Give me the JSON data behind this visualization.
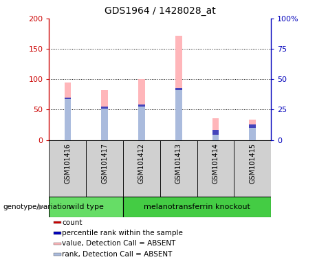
{
  "title": "GDS1964 / 1428028_at",
  "samples": [
    "GSM101416",
    "GSM101417",
    "GSM101412",
    "GSM101413",
    "GSM101414",
    "GSM101415"
  ],
  "pink_bar_heights": [
    95,
    82,
    100,
    172,
    36,
    33
  ],
  "periwinkle_bar_heights": [
    70,
    55,
    58,
    85,
    17,
    25
  ],
  "blue_segment_at_top": [
    3,
    3,
    3,
    3,
    8,
    5
  ],
  "ylim_left": [
    0,
    200
  ],
  "ylim_right": [
    0,
    100
  ],
  "left_ticks": [
    0,
    50,
    100,
    150,
    200
  ],
  "right_ticks": [
    0,
    25,
    50,
    75,
    100
  ],
  "left_tick_labels": [
    "0",
    "50",
    "100",
    "150",
    "200"
  ],
  "right_tick_labels": [
    "0",
    "25",
    "50",
    "75",
    "100%"
  ],
  "groups": [
    {
      "label": "wild type",
      "indices": [
        0,
        1
      ],
      "color": "#66DD66"
    },
    {
      "label": "melanotransferrin knockout",
      "indices": [
        2,
        3,
        4,
        5
      ],
      "color": "#44CC44"
    }
  ],
  "genotype_label": "genotype/variation",
  "legend_items": [
    {
      "label": "count",
      "color": "#CC0000"
    },
    {
      "label": "percentile rank within the sample",
      "color": "#0000BB"
    },
    {
      "label": "value, Detection Call = ABSENT",
      "color": "#FFB6BA"
    },
    {
      "label": "rank, Detection Call = ABSENT",
      "color": "#AABBDD"
    }
  ],
  "pink_color": "#FFB6BA",
  "periwinkle_color": "#AABBDD",
  "blue_color": "#4444BB",
  "red_color": "#CC0000",
  "navy_color": "#0000BB",
  "bg_color": "#FFFFFF",
  "axis_color_left": "#CC0000",
  "axis_color_right": "#0000BB",
  "bar_width": 0.18
}
